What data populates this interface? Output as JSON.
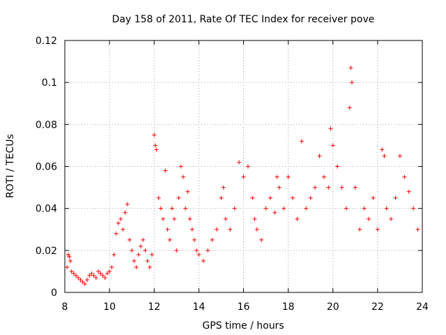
{
  "chart_data": {
    "type": "scatter",
    "title": "Day 158 of 2011, Rate Of TEC Index for receiver pove",
    "xlabel": "GPS time / hours",
    "ylabel": "ROTI / TECUs",
    "xlim": [
      8,
      24
    ],
    "ylim": [
      0,
      0.12
    ],
    "x_ticks": [
      8,
      10,
      12,
      14,
      16,
      18,
      20,
      22,
      24
    ],
    "x_tick_labels": [
      "8",
      "10",
      "12",
      "14",
      "16",
      "18",
      "20",
      "22",
      "24"
    ],
    "y_ticks": [
      0,
      0.02,
      0.04,
      0.06,
      0.08,
      0.1,
      0.12
    ],
    "y_tick_labels": [
      "0",
      "0.02",
      "0.04",
      "0.06",
      "0.08",
      "0.1",
      "0.12"
    ],
    "grid": true,
    "marker": "+",
    "series": [
      {
        "color": "#ff0000",
        "x": [
          8.1,
          8.15,
          8.2,
          8.25,
          8.3,
          8.4,
          8.5,
          8.6,
          8.7,
          8.8,
          8.9,
          9.0,
          9.1,
          9.2,
          9.3,
          9.4,
          9.5,
          9.6,
          9.7,
          9.8,
          9.9,
          10.0,
          10.1,
          10.2,
          10.3,
          10.4,
          10.5,
          10.6,
          10.7,
          10.8,
          10.9,
          11.0,
          11.1,
          11.2,
          11.3,
          11.4,
          11.5,
          11.6,
          11.7,
          11.8,
          11.9,
          12.0,
          12.05,
          12.1,
          12.2,
          12.3,
          12.4,
          12.5,
          12.6,
          12.7,
          12.8,
          12.9,
          13.0,
          13.1,
          13.2,
          13.3,
          13.4,
          13.5,
          13.6,
          13.7,
          13.8,
          13.9,
          14.0,
          14.2,
          14.4,
          14.6,
          14.8,
          15.0,
          15.1,
          15.2,
          15.4,
          15.6,
          15.8,
          16.0,
          16.2,
          16.4,
          16.5,
          16.6,
          16.8,
          17.0,
          17.2,
          17.4,
          17.5,
          17.6,
          17.8,
          18.0,
          18.2,
          18.4,
          18.6,
          18.8,
          19.0,
          19.2,
          19.4,
          19.6,
          19.8,
          19.9,
          20.0,
          20.2,
          20.4,
          20.6,
          20.75,
          20.8,
          20.85,
          21.0,
          21.2,
          21.4,
          21.6,
          21.8,
          22.0,
          22.2,
          22.3,
          22.4,
          22.6,
          22.8,
          23.0,
          23.2,
          23.4,
          23.6,
          23.8
        ],
        "y": [
          0.012,
          0.018,
          0.017,
          0.015,
          0.01,
          0.009,
          0.008,
          0.007,
          0.006,
          0.005,
          0.004,
          0.006,
          0.008,
          0.009,
          0.008,
          0.007,
          0.01,
          0.009,
          0.008,
          0.007,
          0.009,
          0.01,
          0.012,
          0.018,
          0.028,
          0.033,
          0.035,
          0.03,
          0.038,
          0.042,
          0.025,
          0.02,
          0.015,
          0.012,
          0.018,
          0.022,
          0.025,
          0.02,
          0.015,
          0.012,
          0.018,
          0.075,
          0.07,
          0.068,
          0.045,
          0.04,
          0.035,
          0.058,
          0.03,
          0.025,
          0.04,
          0.035,
          0.02,
          0.045,
          0.06,
          0.055,
          0.04,
          0.048,
          0.035,
          0.03,
          0.025,
          0.02,
          0.018,
          0.015,
          0.02,
          0.025,
          0.03,
          0.045,
          0.05,
          0.035,
          0.03,
          0.04,
          0.062,
          0.055,
          0.06,
          0.045,
          0.035,
          0.03,
          0.025,
          0.04,
          0.045,
          0.038,
          0.055,
          0.05,
          0.04,
          0.055,
          0.045,
          0.035,
          0.072,
          0.04,
          0.045,
          0.05,
          0.065,
          0.055,
          0.05,
          0.078,
          0.07,
          0.06,
          0.05,
          0.04,
          0.088,
          0.107,
          0.1,
          0.05,
          0.03,
          0.04,
          0.035,
          0.045,
          0.03,
          0.068,
          0.065,
          0.04,
          0.035,
          0.045,
          0.065,
          0.055,
          0.048,
          0.04,
          0.03
        ]
      }
    ]
  }
}
